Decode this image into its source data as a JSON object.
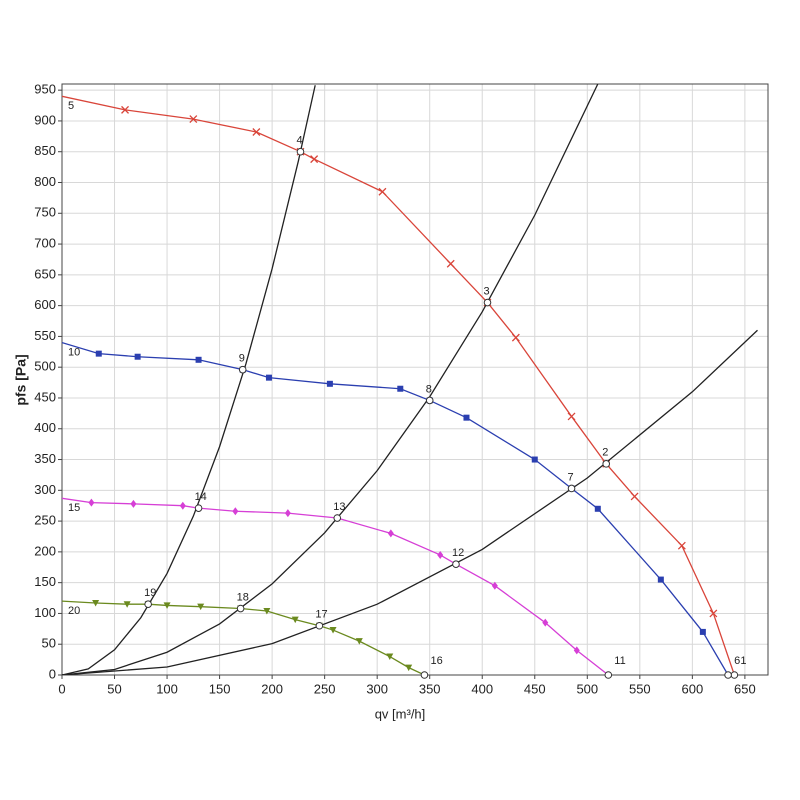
{
  "chart_data": {
    "type": "line",
    "x_label": "qv [m³/h]",
    "y_label": "pfs [Pa]",
    "xlim": [
      0,
      672
    ],
    "ylim": [
      0,
      960
    ],
    "xticks": [
      0,
      50,
      100,
      150,
      200,
      250,
      300,
      350,
      400,
      450,
      500,
      550,
      600,
      650
    ],
    "yticks": [
      0,
      50,
      100,
      150,
      200,
      250,
      300,
      350,
      400,
      450,
      500,
      550,
      600,
      650,
      700,
      750,
      800,
      850,
      900,
      950
    ],
    "grid": true,
    "series": [
      {
        "color": "#d9453a",
        "marker": "x",
        "x": [
          0,
          60,
          125,
          185,
          227,
          240,
          305,
          370,
          405,
          432,
          485,
          518,
          545,
          590,
          620,
          640
        ],
        "values": [
          940,
          918,
          903,
          882,
          850,
          838,
          785,
          668,
          605,
          548,
          420,
          343,
          290,
          210,
          100,
          0
        ]
      },
      {
        "color": "#2b3fb0",
        "marker": "square",
        "x": [
          0,
          35,
          72,
          130,
          172,
          197,
          255,
          322,
          350,
          385,
          450,
          485,
          510,
          570,
          610,
          634
        ],
        "values": [
          540,
          522,
          517,
          512,
          496,
          483,
          473,
          465,
          446,
          418,
          350,
          303,
          270,
          155,
          70,
          0
        ]
      },
      {
        "color": "#d63fd6",
        "marker": "diamond",
        "x": [
          0,
          28,
          68,
          115,
          130,
          165,
          215,
          262,
          313,
          360,
          375,
          412,
          460,
          490,
          520
        ],
        "values": [
          287,
          280,
          278,
          275,
          271,
          266,
          263,
          255,
          230,
          195,
          180,
          145,
          85,
          40,
          0
        ]
      },
      {
        "color": "#6b8a1f",
        "marker": "triangle",
        "x": [
          0,
          32,
          62,
          82,
          100,
          132,
          170,
          195,
          222,
          245,
          258,
          283,
          312,
          330,
          345
        ],
        "values": [
          120,
          117,
          115,
          115,
          113,
          111,
          108,
          104,
          90,
          80,
          73,
          55,
          30,
          12,
          0
        ]
      },
      {
        "color": "#222222",
        "marker": "none",
        "x": [
          0,
          25,
          50,
          75,
          100,
          125,
          150,
          175,
          200,
          225,
          241
        ],
        "values": [
          0,
          10,
          41,
          93,
          165,
          258,
          371,
          505,
          660,
          835,
          958
        ]
      },
      {
        "color": "#222222",
        "marker": "none",
        "x": [
          0,
          50,
          100,
          150,
          200,
          250,
          300,
          350,
          400,
          450,
          510
        ],
        "values": [
          0,
          9,
          37,
          83,
          148,
          231,
          332,
          452,
          590,
          747,
          960
        ]
      },
      {
        "color": "#222222",
        "marker": "none",
        "x": [
          0,
          100,
          200,
          300,
          400,
          500,
          600,
          662
        ],
        "values": [
          0,
          13,
          51,
          115,
          204,
          320,
          460,
          560
        ]
      }
    ],
    "points": [
      {
        "label": "1",
        "x": 640,
        "y": 0
      },
      {
        "label": "2",
        "x": 518,
        "y": 343
      },
      {
        "label": "3",
        "x": 405,
        "y": 605
      },
      {
        "label": "4",
        "x": 227,
        "y": 850
      },
      {
        "label": "5",
        "x": 0,
        "y": 940
      },
      {
        "label": "6",
        "x": 634,
        "y": 0
      },
      {
        "label": "7",
        "x": 485,
        "y": 303
      },
      {
        "label": "8",
        "x": 350,
        "y": 446
      },
      {
        "label": "9",
        "x": 172,
        "y": 496
      },
      {
        "label": "10",
        "x": 0,
        "y": 540
      },
      {
        "label": "11",
        "x": 520,
        "y": 0
      },
      {
        "label": "12",
        "x": 375,
        "y": 180
      },
      {
        "label": "13",
        "x": 262,
        "y": 255
      },
      {
        "label": "14",
        "x": 130,
        "y": 271
      },
      {
        "label": "15",
        "x": 0,
        "y": 287
      },
      {
        "label": "16",
        "x": 345,
        "y": 0
      },
      {
        "label": "17",
        "x": 245,
        "y": 80
      },
      {
        "label": "18",
        "x": 170,
        "y": 108
      },
      {
        "label": "19",
        "x": 82,
        "y": 115
      },
      {
        "label": "20",
        "x": 0,
        "y": 120
      }
    ]
  }
}
